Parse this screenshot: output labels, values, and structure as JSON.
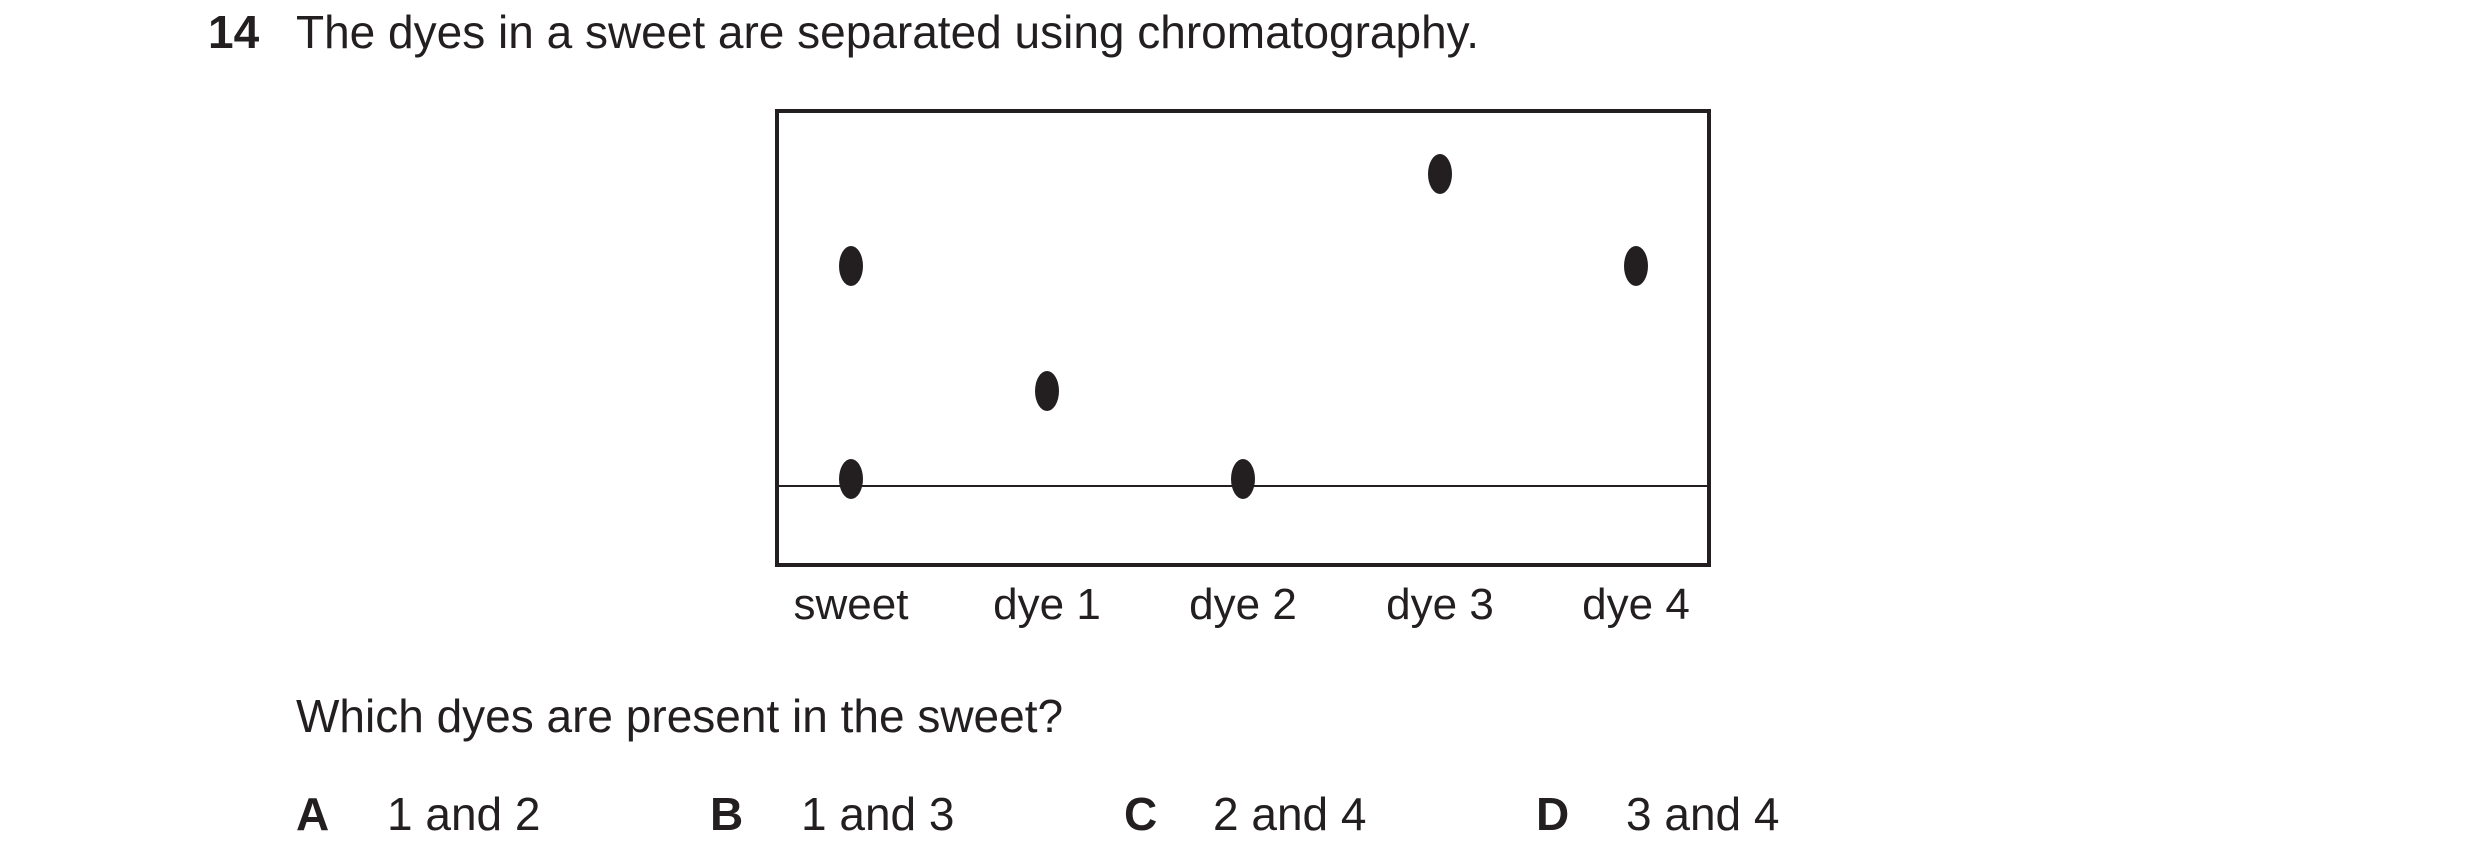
{
  "question": {
    "number": "14",
    "text": "The dyes in a sweet are separated using chromatography."
  },
  "chromatogram": {
    "lanes": [
      "sweet",
      "dye 1",
      "dye 2",
      "dye 3",
      "dye 4"
    ],
    "spot_color": "#231f20"
  },
  "prompt": "Which dyes are present in the sweet?",
  "options": [
    {
      "letter": "A",
      "text": "1 and 2"
    },
    {
      "letter": "B",
      "text": "1 and 3"
    },
    {
      "letter": "C",
      "text": "2 and 4"
    },
    {
      "letter": "D",
      "text": "3 and 4"
    }
  ]
}
